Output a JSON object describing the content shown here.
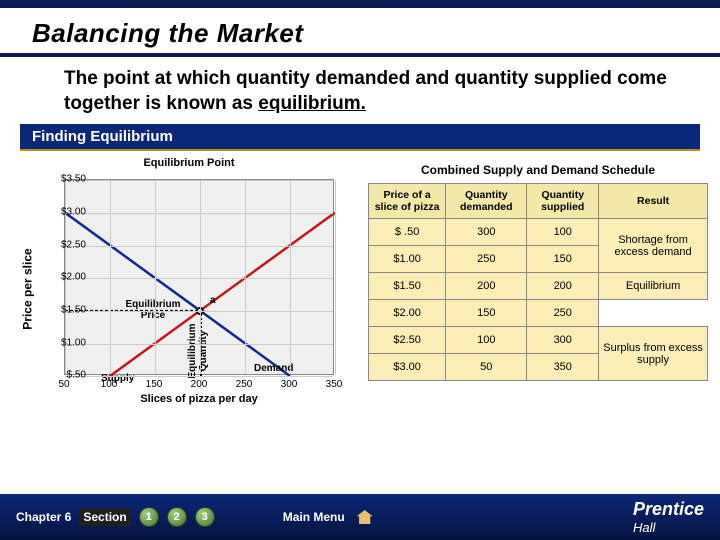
{
  "title": "Balancing the Market",
  "subtitle_a": "The point at which quantity demanded and quantity supplied come together is known as ",
  "subtitle_b": "equilibrium.",
  "section": "Finding Equilibrium",
  "chart": {
    "title": "Equilibrium Point",
    "ylabel": "Price per slice",
    "xlabel": "Slices of pizza per day",
    "ylim": [
      0.5,
      3.5
    ],
    "xlim": [
      50,
      350
    ],
    "ytick_labels": [
      "$3.50",
      "$3.00",
      "$2.50",
      "$2.00",
      "$1.50",
      "$1.00",
      "$.50"
    ],
    "xtick_labels": [
      "50",
      "100",
      "150",
      "200",
      "250",
      "300",
      "350"
    ],
    "supply": {
      "x": [
        100,
        350
      ],
      "y": [
        0.5,
        3.0
      ],
      "color": "#c01818"
    },
    "demand": {
      "x": [
        50,
        300
      ],
      "y": [
        3.0,
        0.5
      ],
      "color": "#102890"
    },
    "eq_x": 200,
    "eq_y": 1.5,
    "eq_price_lbl": "Equilibrium\nPrice",
    "eq_qty_lbl": "Equilibrium\nQuantity",
    "supply_lbl": "Supply",
    "demand_lbl": "Demand",
    "pt_lbl": "a",
    "grid_color": "#cccccc",
    "bg": "#f0f0f0",
    "label_fontsize": 11
  },
  "table": {
    "title": "Combined Supply and Demand Schedule",
    "headers": [
      "Price of a slice of pizza",
      "Quantity demanded",
      "Quantity supplied",
      "Result"
    ],
    "rows": [
      [
        "$ .50",
        "300",
        "100",
        "Shortage from excess demand",
        "2"
      ],
      [
        "$1.00",
        "250",
        "150",
        "",
        "0"
      ],
      [
        "$1.50",
        "200",
        "200",
        "Equilibrium",
        "1"
      ],
      [
        "$2.00",
        "150",
        "250",
        "",
        "0"
      ],
      [
        "$2.50",
        "100",
        "300",
        "Surplus from excess supply",
        "2"
      ],
      [
        "$3.00",
        "50",
        "350",
        "",
        "0"
      ]
    ],
    "header_bg": "#f4e8a8",
    "cell_bg": "#fdeeb8",
    "border": "#888888"
  },
  "footer": {
    "chapter": "Chapter 6",
    "section": "Section",
    "nums": [
      "1",
      "2",
      "3"
    ],
    "main": "Main Menu",
    "logo_a": "Prentice",
    "logo_b": "Hall"
  }
}
